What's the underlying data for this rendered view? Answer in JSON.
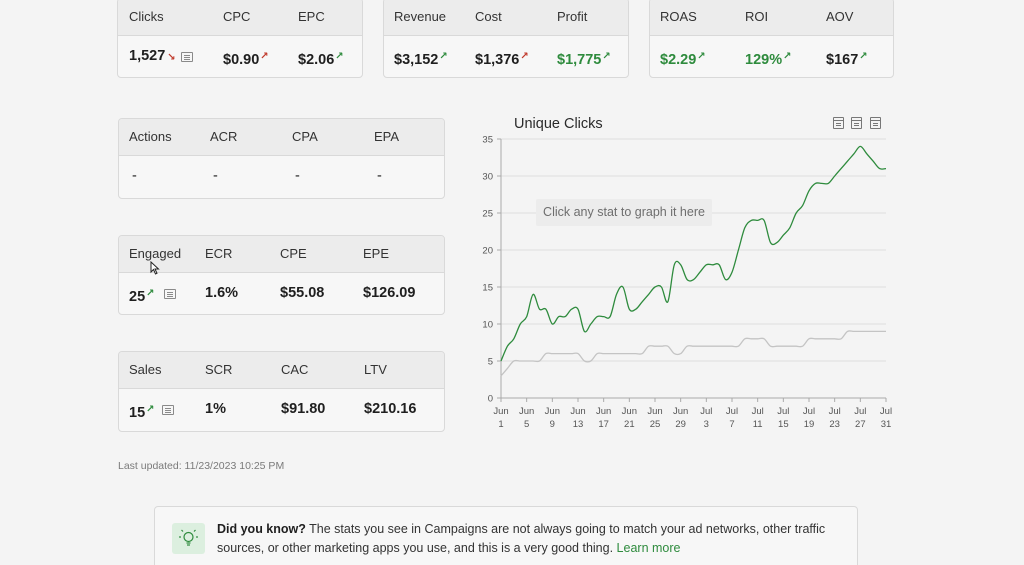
{
  "card_traffic": {
    "labels": [
      "Clicks",
      "CPC",
      "EPC"
    ],
    "clicks": "1,527",
    "cpc": "$0.90",
    "epc": "$2.06"
  },
  "card_money": {
    "labels": [
      "Revenue",
      "Cost",
      "Profit"
    ],
    "revenue": "$3,152",
    "cost": "$1,376",
    "profit": "$1,775"
  },
  "card_returns": {
    "labels": [
      "ROAS",
      "ROI",
      "AOV"
    ],
    "roas": "$2.29",
    "roi": "129%",
    "aov": "$167"
  },
  "card_actions": {
    "labels": [
      "Actions",
      "ACR",
      "CPA",
      "EPA"
    ],
    "values": [
      "-",
      "-",
      "-",
      "-"
    ]
  },
  "card_engaged": {
    "labels": [
      "Engaged",
      "ECR",
      "CPE",
      "EPE"
    ],
    "engaged": "25",
    "ecr": "1.6%",
    "cpe": "$55.08",
    "epe": "$126.09"
  },
  "card_sales": {
    "labels": [
      "Sales",
      "SCR",
      "CAC",
      "LTV"
    ],
    "sales": "15",
    "scr": "1%",
    "cac": "$91.80",
    "ltv": "$210.16"
  },
  "last_updated": "Last updated: 11/23/2023 10:25 PM",
  "chart_hint": "Click any stat to graph it here",
  "tip": {
    "heading": "Did you know?",
    "body": "The stats you see in Campaigns are not always going to match your ad networks, other traffic sources, or other marketing apps you use, and this is a very good thing.",
    "link": "Learn more"
  },
  "colors": {
    "accent_green": "#2e8b3d",
    "down_red": "#c0392b",
    "secondary_line": "#c4c4c4"
  },
  "icons": [
    "trend-down-icon",
    "trend-up-icon",
    "list-icon",
    "calendar-icon",
    "lightbulb-icon"
  ],
  "chart_data": {
    "type": "line",
    "title": "Unique Clicks",
    "x": [
      "Jun 1",
      "Jun 2",
      "Jun 3",
      "Jun 4",
      "Jun 5",
      "Jun 6",
      "Jun 7",
      "Jun 8",
      "Jun 9",
      "Jun 10",
      "Jun 11",
      "Jun 12",
      "Jun 13",
      "Jun 14",
      "Jun 15",
      "Jun 16",
      "Jun 17",
      "Jun 18",
      "Jun 19",
      "Jun 20",
      "Jun 21",
      "Jun 22",
      "Jun 23",
      "Jun 24",
      "Jun 25",
      "Jun 26",
      "Jun 27",
      "Jun 28",
      "Jun 29",
      "Jun 30",
      "Jul 1",
      "Jul 2",
      "Jul 3",
      "Jul 4",
      "Jul 5",
      "Jul 6",
      "Jul 7",
      "Jul 8",
      "Jul 9",
      "Jul 10",
      "Jul 11",
      "Jul 12",
      "Jul 13",
      "Jul 14",
      "Jul 15",
      "Jul 16",
      "Jul 17",
      "Jul 18",
      "Jul 19",
      "Jul 20",
      "Jul 21",
      "Jul 22",
      "Jul 23",
      "Jul 24",
      "Jul 25",
      "Jul 26",
      "Jul 27",
      "Jul 28",
      "Jul 29",
      "Jul 30",
      "Jul 31"
    ],
    "series": [
      {
        "values": [
          5,
          7,
          8,
          10,
          11,
          14,
          12,
          12,
          10,
          11,
          11,
          12,
          12,
          9,
          10,
          11,
          11,
          11,
          14,
          15,
          12,
          12,
          13,
          14,
          15,
          15,
          13,
          18,
          18,
          16,
          16,
          17,
          18,
          18,
          18,
          16,
          17,
          20,
          23,
          24,
          24,
          24,
          21,
          21,
          22,
          23,
          25,
          26,
          28,
          29,
          29,
          29,
          30,
          31,
          32,
          33,
          34,
          33,
          32,
          31,
          31
        ]
      },
      {
        "values": [
          3,
          4,
          5,
          5,
          5,
          5,
          5,
          6,
          6,
          6,
          6,
          6,
          6,
          5,
          5,
          6,
          6,
          6,
          6,
          6,
          6,
          6,
          6,
          7,
          7,
          7,
          7,
          6,
          6,
          7,
          7,
          7,
          7,
          7,
          7,
          7,
          7,
          7,
          8,
          8,
          8,
          8,
          7,
          7,
          7,
          7,
          7,
          7,
          8,
          8,
          8,
          8,
          8,
          8,
          9,
          9,
          9,
          9,
          9,
          9,
          9
        ]
      }
    ],
    "xticks": [
      "Jun 1",
      "Jun 5",
      "Jun 9",
      "Jun 13",
      "Jun 17",
      "Jun 21",
      "Jun 25",
      "Jun 29",
      "Jul 3",
      "Jul 7",
      "Jul 11",
      "Jul 15",
      "Jul 19",
      "Jul 23",
      "Jul 27",
      "Jul 31"
    ],
    "yticks": [
      0,
      5,
      10,
      15,
      20,
      25,
      30,
      35
    ],
    "ylim": [
      0,
      35
    ],
    "grid": true,
    "xlabel": "",
    "ylabel": ""
  }
}
